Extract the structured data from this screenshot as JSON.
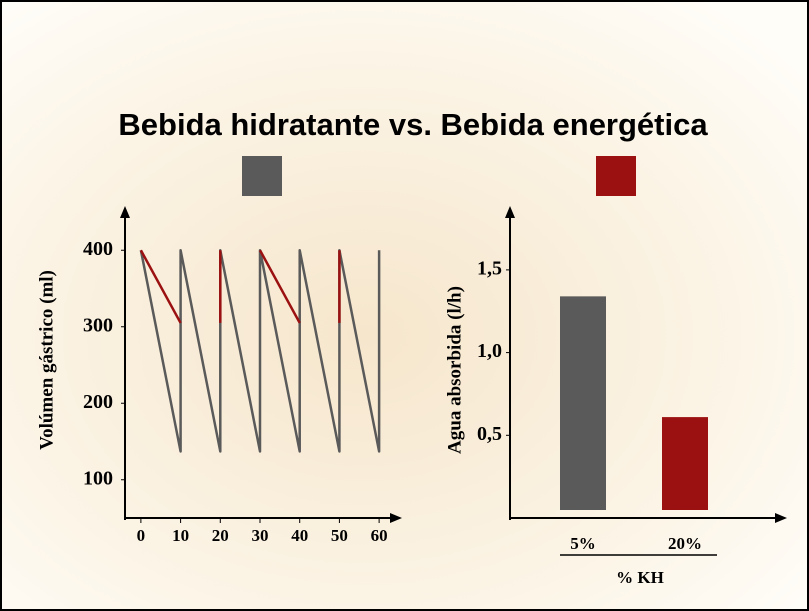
{
  "chart_data": [
    {
      "type": "line",
      "title": "Bebida hidratante vs. Bebida energética",
      "ylabel": "Volúmen gástrico (ml)",
      "xlim": [
        -4,
        64
      ],
      "xticks": [
        0,
        10,
        20,
        30,
        40,
        50,
        60
      ],
      "ylim": [
        50,
        450
      ],
      "yticks": [
        100,
        200,
        300,
        400
      ],
      "series": [
        {
          "color": "#5a5a5a",
          "x": [
            0,
            10,
            10,
            20,
            20,
            30,
            30,
            40,
            40,
            50,
            50,
            60,
            60
          ],
          "values": [
            400,
            137,
            400,
            137,
            400,
            137,
            400,
            137,
            400,
            137,
            400,
            137,
            400
          ]
        },
        {
          "color": "#9b1010",
          "x": [
            0,
            10,
            10,
            20,
            20,
            30,
            30,
            40,
            40,
            50,
            50,
            60
          ],
          "values": [
            400,
            305,
            null,
            400,
            305,
            null,
            400,
            305,
            null,
            400,
            305,
            null
          ]
        }
      ]
    },
    {
      "type": "bar",
      "ylabel": "Agua absorbida (l/h)",
      "xlabel": "% KH",
      "categories": [
        "5%",
        "20%"
      ],
      "values": [
        1.34,
        0.61
      ],
      "colors": [
        "#5a5a5a",
        "#9b1010"
      ],
      "ylim": [
        0,
        1.85
      ],
      "yticks": [
        {
          "value": 0.5,
          "label": "0,5"
        },
        {
          "value": 1.0,
          "label": "1,0"
        },
        {
          "value": 1.5,
          "label": "1,5"
        }
      ]
    }
  ]
}
